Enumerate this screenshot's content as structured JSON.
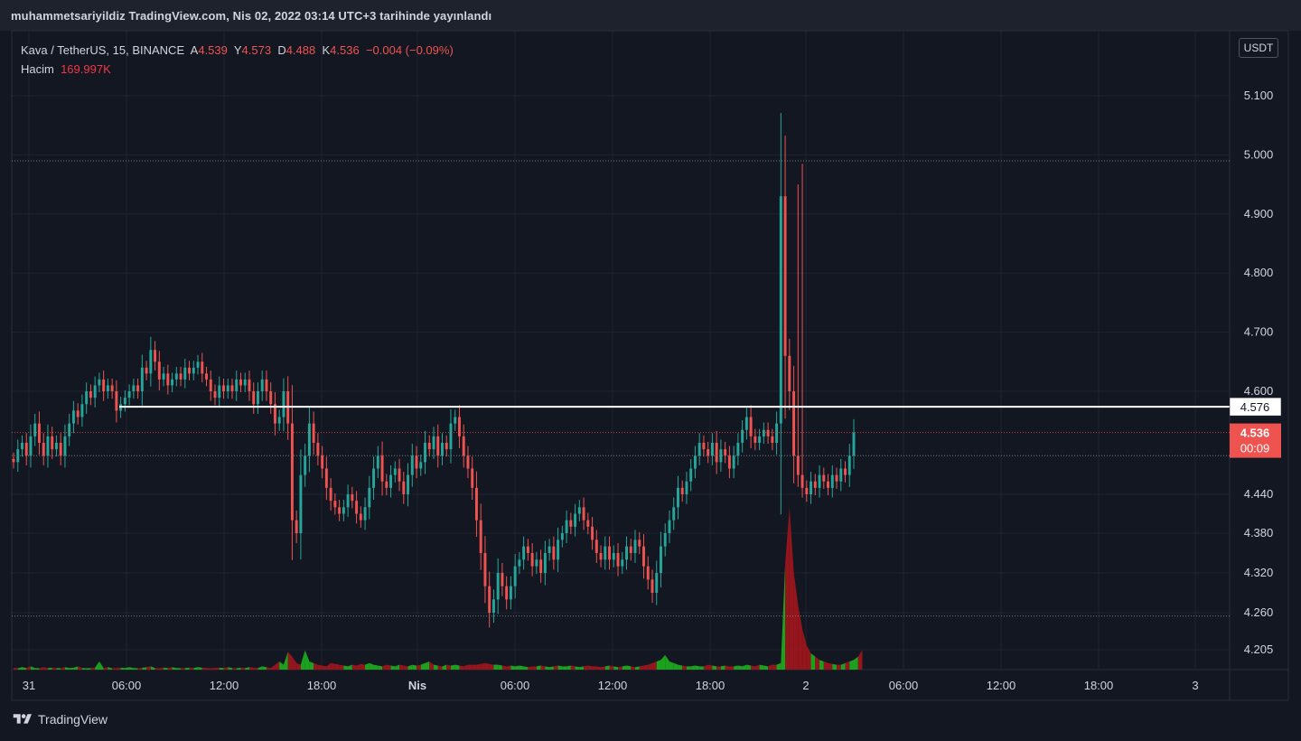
{
  "header": {
    "publish_text": "muhammetsariyildiz TradingView.com, Nis 02, 2022 03:14 UTC+3 tarihinde yayınlandı"
  },
  "legend": {
    "symbol": "Kava / TetherUS, 15, BINANCE",
    "o_label": "A",
    "o_value": "4.539",
    "h_label": "Y",
    "h_value": "4.573",
    "l_label": "D",
    "l_value": "4.488",
    "c_label": "K",
    "c_value": "4.536",
    "change": "−0.004 (−0.09%)",
    "volume_label": "Hacim",
    "volume_value": "169.997K"
  },
  "currency_button": "USDT",
  "footer": {
    "brand": "TradingView"
  },
  "colors": {
    "background": "#131722",
    "up": "#26a69a",
    "down": "#ef5350",
    "vol_up": "#1db01d",
    "vol_down": "#a3151b",
    "text": "#d1d4dc",
    "grid": "#1f2331"
  },
  "chart_data": {
    "type": "candlestick",
    "price_scale": [
      {
        "value": 4.205,
        "label": "4.205"
      },
      {
        "value": 4.26,
        "label": "4.260"
      },
      {
        "value": 4.32,
        "label": "4.320"
      },
      {
        "value": 4.38,
        "label": "4.380"
      },
      {
        "value": 4.44,
        "label": "4.440"
      },
      {
        "value": 4.6,
        "label": "4.600"
      },
      {
        "value": 4.7,
        "label": "4.700"
      },
      {
        "value": 4.8,
        "label": "4.800"
      },
      {
        "value": 4.9,
        "label": "4.900"
      },
      {
        "value": 5.0,
        "label": "5.000"
      },
      {
        "value": 5.1,
        "label": "5.100"
      }
    ],
    "time_scale": [
      "31",
      "06:00",
      "12:00",
      "18:00",
      "Nis",
      "06:00",
      "12:00",
      "18:00",
      "2",
      "06:00",
      "12:00",
      "18:00",
      "3"
    ],
    "horizontal_line": {
      "value": 4.576,
      "label": "4.576"
    },
    "dotted_levels": [
      4.99,
      4.5,
      4.255
    ],
    "last_price": {
      "value": 4.536,
      "label": "4.536",
      "countdown": "00:09"
    },
    "candle_interval": "15",
    "closes": [
      4.49,
      4.51,
      4.52,
      4.5,
      4.53,
      4.55,
      4.52,
      4.5,
      4.53,
      4.51,
      4.52,
      4.5,
      4.53,
      4.55,
      4.57,
      4.56,
      4.58,
      4.6,
      4.59,
      4.61,
      4.62,
      4.6,
      4.61,
      4.6,
      4.57,
      4.58,
      4.59,
      4.6,
      4.61,
      4.6,
      4.64,
      4.63,
      4.67,
      4.65,
      4.62,
      4.63,
      4.61,
      4.62,
      4.63,
      4.62,
      4.64,
      4.63,
      4.64,
      4.65,
      4.63,
      4.62,
      4.6,
      4.59,
      4.61,
      4.6,
      4.61,
      4.6,
      4.62,
      4.61,
      4.62,
      4.6,
      4.58,
      4.6,
      4.62,
      4.6,
      4.58,
      4.55,
      4.56,
      4.6,
      4.55,
      4.4,
      4.38,
      4.47,
      4.5,
      4.55,
      4.52,
      4.5,
      4.48,
      4.45,
      4.43,
      4.42,
      4.41,
      4.42,
      4.44,
      4.43,
      4.41,
      4.4,
      4.42,
      4.45,
      4.48,
      4.5,
      4.46,
      4.45,
      4.47,
      4.48,
      4.46,
      4.44,
      4.47,
      4.5,
      4.48,
      4.49,
      4.52,
      4.51,
      4.53,
      4.5,
      4.52,
      4.51,
      4.55,
      4.56,
      4.53,
      4.5,
      4.48,
      4.45,
      4.4,
      4.35,
      4.3,
      4.26,
      4.28,
      4.32,
      4.3,
      4.28,
      4.3,
      4.33,
      4.34,
      4.36,
      4.35,
      4.33,
      4.34,
      4.32,
      4.35,
      4.36,
      4.34,
      4.37,
      4.38,
      4.4,
      4.39,
      4.41,
      4.42,
      4.4,
      4.39,
      4.37,
      4.35,
      4.34,
      4.36,
      4.34,
      4.35,
      4.33,
      4.34,
      4.36,
      4.35,
      4.37,
      4.36,
      4.33,
      4.31,
      4.29,
      4.32,
      4.36,
      4.38,
      4.4,
      4.42,
      4.45,
      4.44,
      4.46,
      4.48,
      4.5,
      4.52,
      4.51,
      4.5,
      4.52,
      4.49,
      4.51,
      4.5,
      4.48,
      4.5,
      4.52,
      4.54,
      4.56,
      4.53,
      4.52,
      4.53,
      4.54,
      4.53,
      4.52,
      4.55,
      4.93,
      4.66,
      4.6,
      4.5,
      4.47,
      4.45,
      4.44,
      4.46,
      4.45,
      4.47,
      4.46,
      4.45,
      4.47,
      4.46,
      4.48,
      4.47,
      4.5,
      4.536
    ],
    "volume": [
      0.12,
      0.08,
      0.15,
      0.1,
      0.2,
      0.1,
      0.08,
      0.15,
      0.1,
      0.12,
      0.1,
      0.08,
      0.15,
      0.1,
      0.12,
      0.2,
      0.1,
      0.08,
      0.1,
      0.12,
      0.5,
      0.1,
      0.15,
      0.08,
      0.1,
      0.12,
      0.1,
      0.15,
      0.1,
      0.08,
      0.12,
      0.15,
      0.2,
      0.1,
      0.08,
      0.12,
      0.1,
      0.15,
      0.1,
      0.08,
      0.1,
      0.12,
      0.1,
      0.15,
      0.12,
      0.1,
      0.08,
      0.1,
      0.12,
      0.1,
      0.15,
      0.1,
      0.08,
      0.12,
      0.1,
      0.15,
      0.12,
      0.1,
      0.2,
      0.15,
      0.1,
      0.3,
      0.5,
      0.3,
      1.1,
      0.8,
      0.4,
      0.3,
      1.2,
      0.5,
      0.4,
      0.3,
      0.25,
      0.2,
      0.4,
      0.35,
      0.3,
      0.25,
      0.2,
      0.3,
      0.25,
      0.35,
      0.3,
      0.4,
      0.3,
      0.25,
      0.2,
      0.3,
      0.25,
      0.2,
      0.3,
      0.25,
      0.2,
      0.3,
      0.25,
      0.3,
      0.4,
      0.5,
      0.3,
      0.25,
      0.2,
      0.3,
      0.25,
      0.3,
      0.25,
      0.2,
      0.3,
      0.3,
      0.3,
      0.35,
      0.4,
      0.35,
      0.3,
      0.3,
      0.25,
      0.2,
      0.25,
      0.2,
      0.25,
      0.2,
      0.15,
      0.2,
      0.2,
      0.25,
      0.2,
      0.15,
      0.2,
      0.25,
      0.2,
      0.2,
      0.25,
      0.2,
      0.15,
      0.2,
      0.25,
      0.2,
      0.2,
      0.15,
      0.2,
      0.25,
      0.2,
      0.15,
      0.2,
      0.25,
      0.2,
      0.15,
      0.2,
      0.25,
      0.3,
      0.4,
      0.5,
      0.6,
      0.9,
      0.5,
      0.4,
      0.3,
      0.25,
      0.2,
      0.2,
      0.25,
      0.2,
      0.2,
      0.3,
      0.25,
      0.2,
      0.2,
      0.25,
      0.2,
      0.2,
      0.25,
      0.2,
      0.3,
      0.25,
      0.2,
      0.3,
      0.25,
      0.2,
      0.3,
      0.3,
      0.4,
      6.5,
      10.0,
      6.0,
      4.0,
      2.5,
      1.5,
      1.0,
      0.8,
      0.6,
      0.5,
      0.4,
      0.35,
      0.3,
      0.3,
      0.4,
      0.5,
      0.6,
      0.8,
      1.2
    ]
  }
}
